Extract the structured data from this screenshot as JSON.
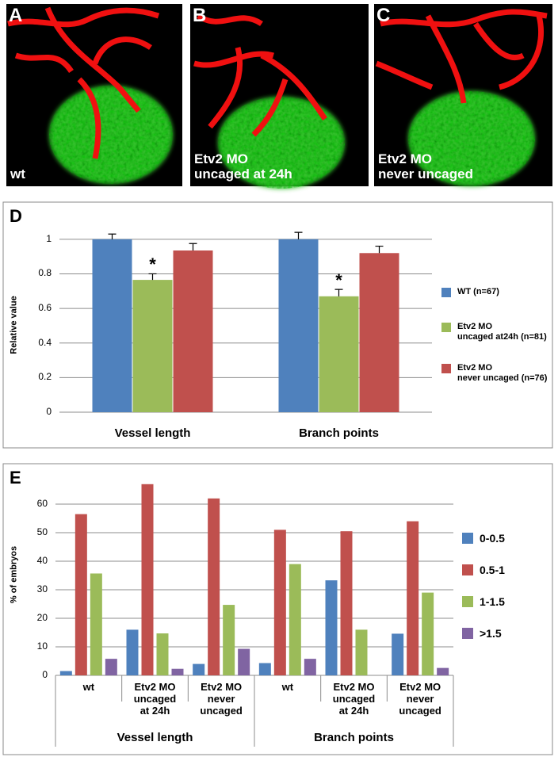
{
  "panels": [
    {
      "letter": "A",
      "label": "wt"
    },
    {
      "letter": "B",
      "label": "Etv2 MO\nuncaged at 24h"
    },
    {
      "letter": "C",
      "label": "Etv2 MO\nnever uncaged"
    }
  ],
  "chart_data": [
    {
      "type": "bar",
      "panel": "D",
      "y_label": "Relative value",
      "categories": [
        "Vessel length",
        "Branch points"
      ],
      "series": [
        {
          "name": "WT (n=67)",
          "color": "#4f81bd",
          "values": [
            1,
            1
          ],
          "errors": [
            0.03,
            0.04
          ]
        },
        {
          "name": "Etv2 MO\nuncaged at24h (n=81)",
          "color": "#9bbb59",
          "values": [
            0.765,
            0.67
          ],
          "errors": [
            0.035,
            0.04
          ],
          "significance": [
            "*",
            "*"
          ]
        },
        {
          "name": "Etv2 MO\nnever uncaged (n=76)",
          "color": "#c0504d",
          "values": [
            0.935,
            0.92
          ],
          "errors": [
            0.04,
            0.04
          ]
        }
      ],
      "ylim": [
        0,
        1.1
      ],
      "yticks": [
        0,
        0.2,
        0.4,
        0.6,
        0.8,
        1
      ],
      "grid": true
    },
    {
      "type": "bar",
      "panel": "E",
      "y_label": "% of embryos",
      "categories": [
        "wt",
        "Etv2 MO\nuncaged\nat 24h",
        "Etv2 MO\nnever\nuncaged",
        "wt",
        "Etv2 MO\nuncaged\nat 24h",
        "Etv2 MO\nnever\nuncaged"
      ],
      "group_labels": [
        "Vessel length",
        "Branch points"
      ],
      "series": [
        {
          "name": "0-0.5",
          "color": "#4f81bd",
          "values": [
            1.5,
            16,
            4,
            4.3,
            33.3,
            14.6
          ]
        },
        {
          "name": "0.5-1",
          "color": "#c0504d",
          "values": [
            56.5,
            67,
            62,
            51,
            50.5,
            54
          ]
        },
        {
          "name": "1-1.5",
          "color": "#9bbb59",
          "values": [
            35.7,
            14.7,
            24.7,
            39,
            16,
            29
          ]
        },
        {
          "name": ">1.5",
          "color": "#8064a2",
          "values": [
            5.8,
            2.3,
            9.3,
            5.8,
            0,
            2.6
          ]
        }
      ],
      "ylim": [
        0,
        70
      ],
      "yticks": [
        0,
        10,
        20,
        30,
        40,
        50,
        60
      ],
      "grid": true
    }
  ]
}
